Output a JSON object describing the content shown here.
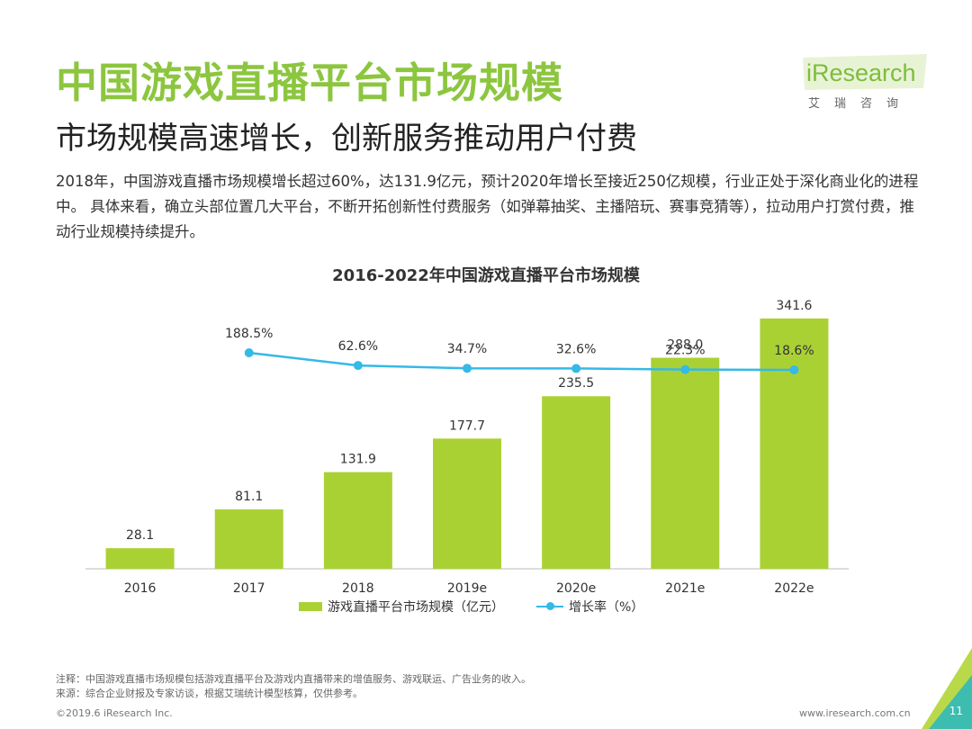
{
  "title": "中国游戏直播平台市场规模",
  "subtitle": "市场规模高速增长，创新服务推动用户付费",
  "intro": "2018年，中国游戏直播市场规模增长超过60%，达131.9亿元，预计2020年增长至接近250亿规模，行业正处于深化商业化的进程中。 具体来看，确立头部位置几大平台，不断开拓创新性付费服务（如弹幕抽奖、主播陪玩、赛事竞猜等），拉动用户打赏付费，推动行业规模持续提升。",
  "logo": {
    "wordmark": "iResearch",
    "cn": "艾瑞咨询"
  },
  "chart_data": {
    "type": "bar",
    "title": "2016-2022年中国游戏直播平台市场规模",
    "categories": [
      "2016",
      "2017",
      "2018",
      "2019e",
      "2020e",
      "2021e",
      "2022e"
    ],
    "series": [
      {
        "name": "游戏直播平台市场规模（亿元）",
        "type": "bar",
        "values": [
          28.1,
          81.1,
          131.9,
          177.7,
          235.5,
          288.0,
          341.6
        ],
        "labels": [
          "28.1",
          "81.1",
          "131.9",
          "177.7",
          "235.5",
          "288.0",
          "341.6"
        ]
      },
      {
        "name": "增长率（%）",
        "type": "line",
        "values": [
          null,
          188.5,
          62.6,
          34.7,
          32.6,
          22.3,
          18.6
        ],
        "labels": [
          "",
          "188.5%",
          "62.6%",
          "34.7%",
          "32.6%",
          "22.3%",
          "18.6%"
        ]
      }
    ],
    "xlabel": "",
    "ylabel": "",
    "ylim": [
      0,
      350
    ],
    "legend_position": "bottom",
    "colors": {
      "bar": "#aad134",
      "line": "#35b9e7"
    }
  },
  "legend": {
    "bar_label": "游戏直播平台市场规模（亿元）",
    "line_label": "增长率（%）"
  },
  "notes": {
    "note": "注释：中国游戏直播市场规模包括游戏直播平台及游戏内直播带来的增值服务、游戏联运、广告业务的收入。",
    "source": "来源：综合企业财报及专家访谈，根据艾瑞统计模型核算，仅供参考。"
  },
  "footer": {
    "copyright": "©2019.6 iResearch Inc.",
    "website": "www.iresearch.com.cn",
    "page": "11"
  },
  "colors": {
    "title": "#8cc63f",
    "accent": "#aad134",
    "line": "#35b9e7"
  }
}
